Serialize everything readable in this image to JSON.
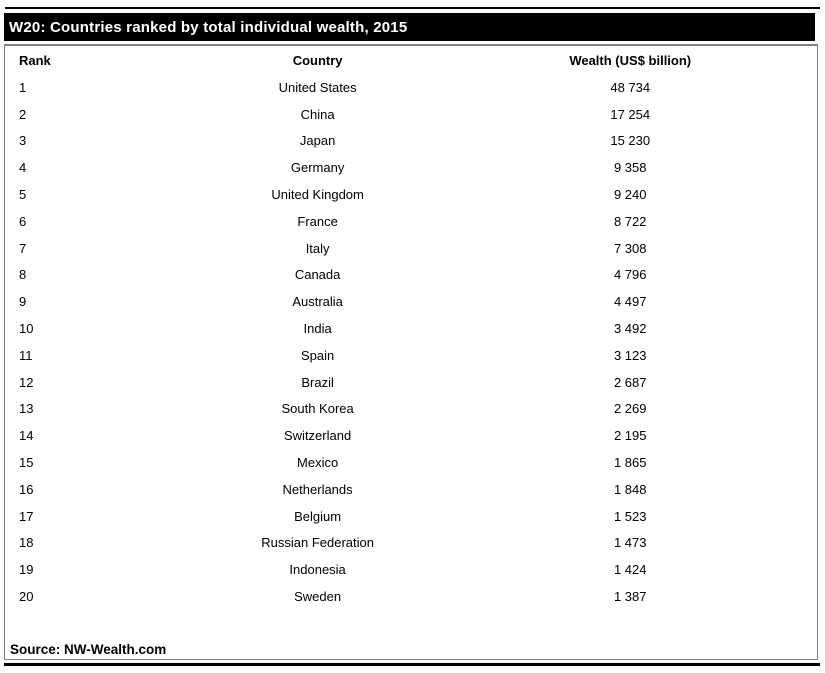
{
  "title_bar": {
    "title": "W20: Countries ranked by total individual wealth, 2015"
  },
  "table": {
    "columns": [
      "Rank",
      "Country",
      "Wealth (US$ billion)"
    ],
    "rows": [
      [
        "1",
        "United States",
        "48 734"
      ],
      [
        "2",
        "China",
        "17 254"
      ],
      [
        "3",
        "Japan",
        "15 230"
      ],
      [
        "4",
        "Germany",
        "9 358"
      ],
      [
        "5",
        "United Kingdom",
        "9 240"
      ],
      [
        "6",
        "France",
        "8 722"
      ],
      [
        "7",
        "Italy",
        "7 308"
      ],
      [
        "8",
        "Canada",
        "4 796"
      ],
      [
        "9",
        "Australia",
        "4 497"
      ],
      [
        "10",
        "India",
        "3 492"
      ],
      [
        "11",
        "Spain",
        "3 123"
      ],
      [
        "12",
        "Brazil",
        "2 687"
      ],
      [
        "13",
        "South Korea",
        "2 269"
      ],
      [
        "14",
        "Switzerland",
        "2 195"
      ],
      [
        "15",
        "Mexico",
        "1 865"
      ],
      [
        "16",
        "Netherlands",
        "1 848"
      ],
      [
        "17",
        "Belgium",
        "1 523"
      ],
      [
        "18",
        "Russian Federation",
        "1 473"
      ],
      [
        "19",
        "Indonesia",
        "1 424"
      ],
      [
        "20",
        "Sweden",
        "1 387"
      ]
    ]
  },
  "footer": {
    "source": "Source: NW-Wealth.com"
  },
  "colors": {
    "title_bar_bg": "#000000",
    "title_bar_text": "#ffffff",
    "box_border": "#808080",
    "rule": "#000000",
    "body_text": "#000000",
    "page_bg": "#ffffff"
  },
  "chart_data": {
    "type": "table",
    "title": "W20: Countries ranked by total individual wealth, 2015",
    "columns": [
      "Rank",
      "Country",
      "Wealth (US$ billion)"
    ],
    "rows": [
      [
        1,
        "United States",
        48734
      ],
      [
        2,
        "China",
        17254
      ],
      [
        3,
        "Japan",
        15230
      ],
      [
        4,
        "Germany",
        9358
      ],
      [
        5,
        "United Kingdom",
        9240
      ],
      [
        6,
        "France",
        8722
      ],
      [
        7,
        "Italy",
        7308
      ],
      [
        8,
        "Canada",
        4796
      ],
      [
        9,
        "Australia",
        4497
      ],
      [
        10,
        "India",
        3492
      ],
      [
        11,
        "Spain",
        3123
      ],
      [
        12,
        "Brazil",
        2687
      ],
      [
        13,
        "South Korea",
        2269
      ],
      [
        14,
        "Switzerland",
        2195
      ],
      [
        15,
        "Mexico",
        1865
      ],
      [
        16,
        "Netherlands",
        1848
      ],
      [
        17,
        "Belgium",
        1523
      ],
      [
        18,
        "Russian Federation",
        1473
      ],
      [
        19,
        "Indonesia",
        1424
      ],
      [
        20,
        "Sweden",
        1387
      ]
    ],
    "number_format": "thousands separated by space",
    "source": "Source: NW-Wealth.com"
  }
}
